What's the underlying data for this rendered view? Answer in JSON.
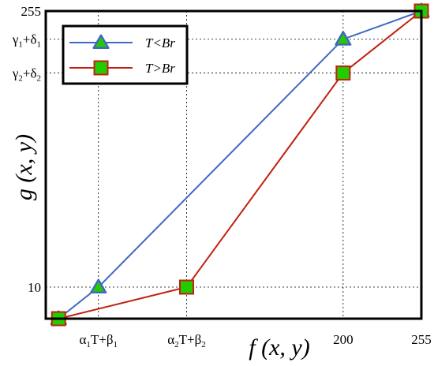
{
  "chart_data": {
    "type": "line",
    "x_ticks": [
      {
        "x": 28,
        "label": "α₁T+β₁"
      },
      {
        "x": 90,
        "label": "α₂T+β₂"
      },
      {
        "x": 200,
        "label": "200"
      },
      {
        "x": 255,
        "label": "255"
      }
    ],
    "y_ticks": [
      {
        "y": 10,
        "label": "10"
      },
      {
        "y": 200,
        "label": "γ₂+δ₂"
      },
      {
        "y": 230,
        "label": "γ₁+δ₁"
      },
      {
        "y": 255,
        "label": "255"
      }
    ],
    "xlim": [
      -9,
      255
    ],
    "ylim": [
      -18,
      255
    ],
    "series": [
      {
        "name": "T<Br",
        "color": "#4169c0",
        "marker": "triangle",
        "marker_fill": "#22cc00",
        "x": [
          0,
          28,
          200,
          255
        ],
        "y": [
          -18,
          10,
          230,
          255
        ]
      },
      {
        "name": "T>Br",
        "color": "#c0210f",
        "marker": "square",
        "marker_fill": "#22cc00",
        "x": [
          0,
          90,
          200,
          255
        ],
        "y": [
          -18,
          10,
          200,
          255
        ]
      }
    ],
    "xlabel": "f (x, y)",
    "ylabel": "g (x, y)",
    "grid": true,
    "legend": "top-left"
  }
}
